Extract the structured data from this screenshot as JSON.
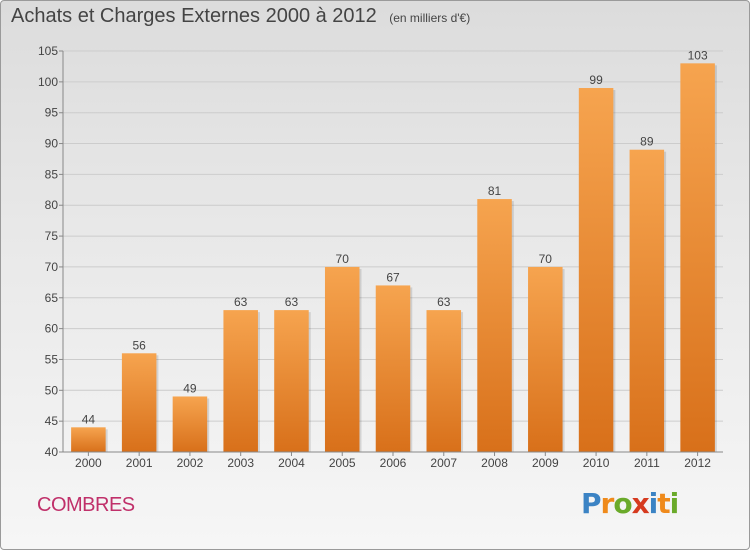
{
  "header": {
    "title": "Achats et Charges Externes 2000 à 2012",
    "unit": "(en milliers d'€)"
  },
  "commune": "COMBRES",
  "logo": {
    "letters": [
      "P",
      "r",
      "o",
      "x",
      "i",
      "t",
      "i"
    ]
  },
  "colors": {
    "bar_top": "#f6a44f",
    "bar_bottom": "#d8701a",
    "grid": "#cccccc",
    "commune": "#c0306a"
  },
  "chart_data": {
    "type": "bar",
    "categories": [
      "2000",
      "2001",
      "2002",
      "2003",
      "2004",
      "2005",
      "2006",
      "2007",
      "2008",
      "2009",
      "2010",
      "2011",
      "2012"
    ],
    "values": [
      44,
      56,
      49,
      63,
      63,
      70,
      67,
      63,
      81,
      70,
      99,
      89,
      103
    ],
    "title": "Achats et Charges Externes 2000 à 2012",
    "xlabel": "",
    "ylabel": "",
    "ylim": [
      40,
      105
    ],
    "yticks": [
      40,
      45,
      50,
      55,
      60,
      65,
      70,
      75,
      80,
      85,
      90,
      95,
      100,
      105
    ],
    "grid": true,
    "data_labels": true
  }
}
